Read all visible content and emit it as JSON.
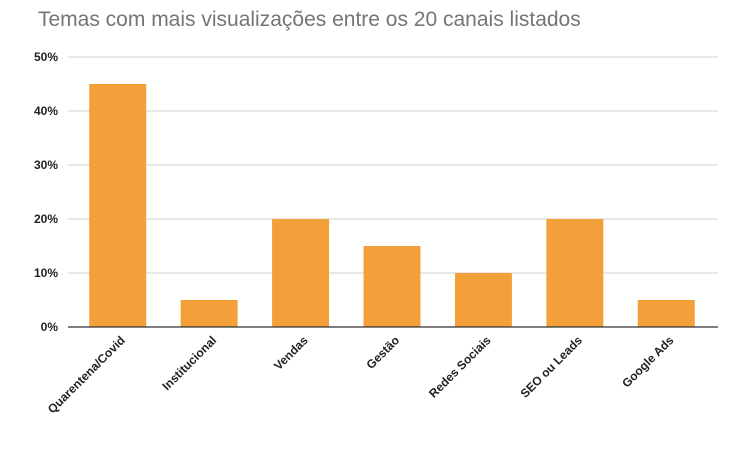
{
  "chart_data": {
    "type": "bar",
    "title": "Temas com mais visualizações entre os 20 canais listados",
    "xlabel": "",
    "ylabel": "",
    "categories": [
      "Quarentena/Covid",
      "Institucional",
      "Vendas",
      "Gestão",
      "Redes Sociais",
      "SEO ou Leads",
      "Google Ads"
    ],
    "values": [
      45,
      5,
      20,
      15,
      10,
      20,
      5
    ],
    "ylim": [
      0,
      50
    ],
    "yticks": [
      0,
      10,
      20,
      30,
      40,
      50
    ],
    "ytick_labels": [
      "0%",
      "10%",
      "20%",
      "30%",
      "40%",
      "50%"
    ],
    "grid": true,
    "legend": "none",
    "colors": {
      "bar": "#F4A03A",
      "grid": "#D0D0D0",
      "axis": "#333333"
    }
  }
}
